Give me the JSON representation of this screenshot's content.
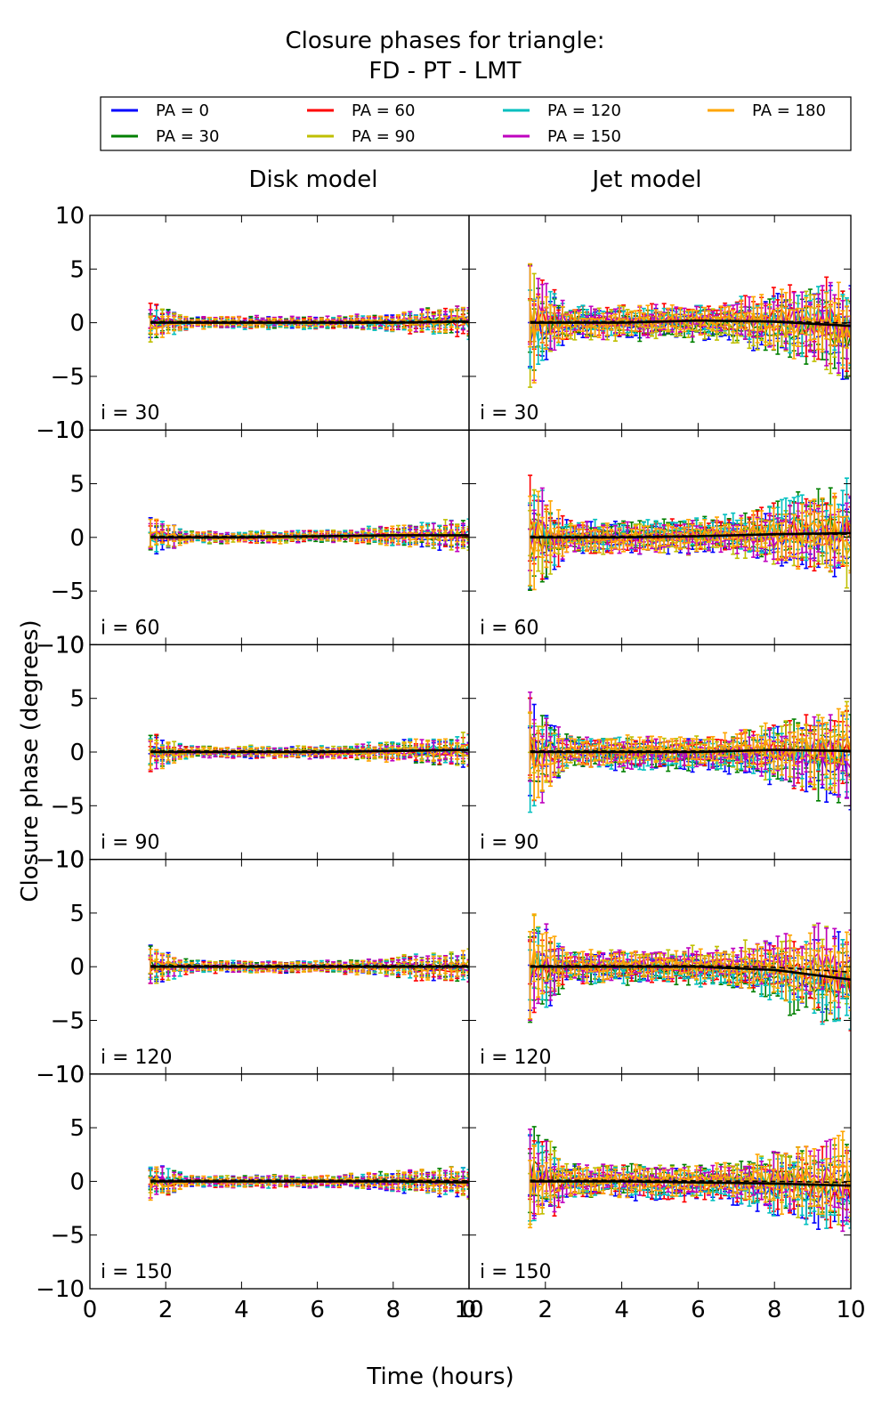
{
  "figure": {
    "title_line1": "Closure phases for triangle:",
    "title_line2": "FD - PT - LMT",
    "column_titles": [
      "Disk model",
      "Jet model"
    ],
    "xlabel": "Time (hours)",
    "ylabel": "Closure phase (degrees)"
  },
  "legend": {
    "placement": "top, above panels, 4 columns",
    "items": [
      {
        "label": "PA = 0",
        "color": "#0000ff"
      },
      {
        "label": "PA = 30",
        "color": "#008000"
      },
      {
        "label": "PA = 60",
        "color": "#ff0000"
      },
      {
        "label": "PA = 90",
        "color": "#bfbf00"
      },
      {
        "label": "PA = 120",
        "color": "#00bfbf"
      },
      {
        "label": "PA = 150",
        "color": "#bf00bf"
      },
      {
        "label": "PA = 180",
        "color": "#ffa500"
      }
    ]
  },
  "chart_data": {
    "type": "line",
    "layout": "5 rows (inclination) x 2 columns (model), shared axes",
    "xlim": [
      0,
      10
    ],
    "ylim": [
      -10,
      10
    ],
    "x_ticks": [
      "0",
      "2",
      "4",
      "6",
      "8",
      "10"
    ],
    "y_ticks": [
      "10",
      "5",
      "0",
      "−5",
      "−10"
    ],
    "grid": false,
    "time_range": [
      1.6,
      10
    ],
    "series_names": [
      "PA = 0",
      "PA = 30",
      "PA = 60",
      "PA = 90",
      "PA = 120",
      "PA = 150",
      "PA = 180"
    ],
    "inclinations": [
      "i = 30",
      "i = 60",
      "i = 90",
      "i = 120",
      "i = 150"
    ],
    "model_trend": {
      "x": [
        1.6,
        4,
        6,
        8,
        10
      ],
      "disk": [
        [
          0,
          0,
          0,
          0,
          0.1
        ],
        [
          0,
          0,
          0.1,
          0.2,
          0.2
        ],
        [
          0,
          0,
          0,
          0.1,
          0.2
        ],
        [
          0,
          0,
          0,
          0,
          0
        ],
        [
          0,
          0,
          0,
          0,
          -0.1
        ]
      ],
      "jet": [
        [
          0,
          0,
          0.2,
          0.1,
          -0.3
        ],
        [
          0,
          0,
          0.1,
          0.3,
          0.4
        ],
        [
          0,
          0,
          0,
          0.2,
          0.1
        ],
        [
          0,
          0,
          0,
          -0.3,
          -1.2
        ],
        [
          0,
          0,
          -0.1,
          -0.2,
          -0.4
        ]
      ]
    },
    "scatter_amplitude": {
      "disk": {
        "early": 1.0,
        "mid": 0.3,
        "late": 0.8
      },
      "jet": {
        "early": 3.0,
        "mid": 0.8,
        "late": 2.5
      }
    }
  }
}
